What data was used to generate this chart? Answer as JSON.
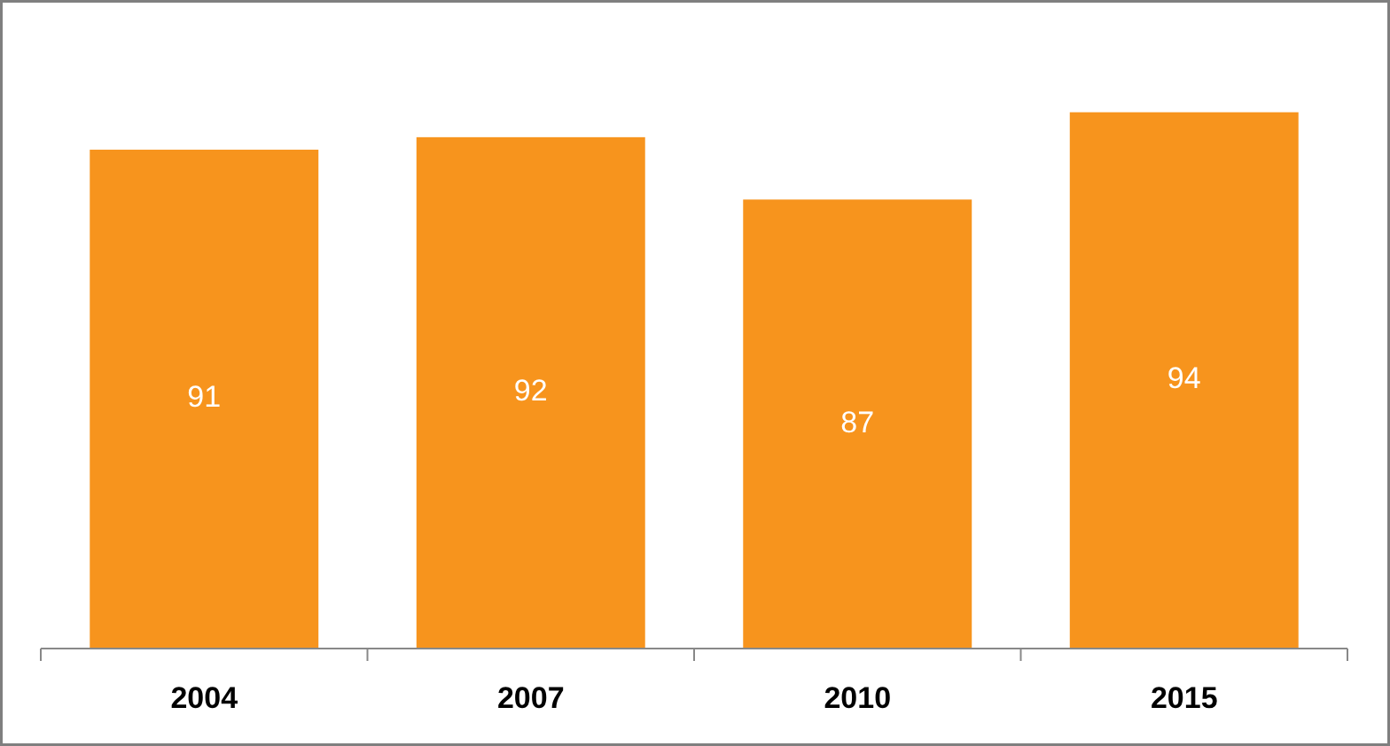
{
  "chart_data": {
    "type": "bar",
    "categories": [
      "2004",
      "2007",
      "2010",
      "2015"
    ],
    "values": [
      91,
      92,
      87,
      94
    ],
    "color": "#f7941d",
    "ylim": [
      51,
      103
    ],
    "data_labels": true
  }
}
